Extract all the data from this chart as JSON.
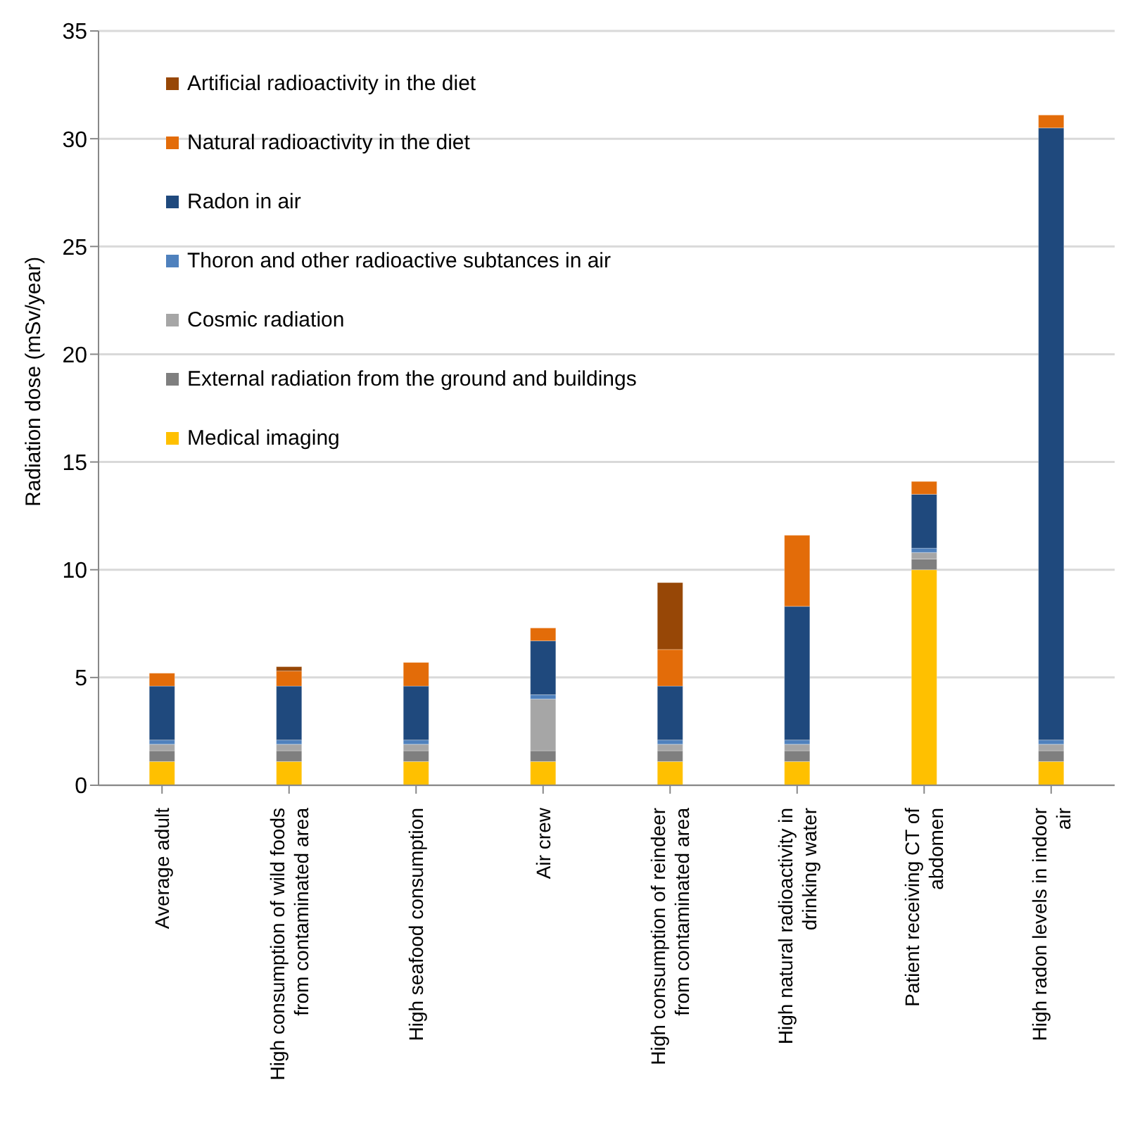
{
  "chart_data": {
    "type": "bar",
    "stacked": true,
    "ylabel": "Radiation dose (mSv/year)",
    "categories": [
      "Average adult",
      "High consumption of wild foods from contaminated area",
      "High seafood consumption",
      "Air crew",
      "High consumption of reindeer from contaminated area",
      "High natural radioactivity in drinking water",
      "Patient receiving CT of abdomen",
      "High radon levels in indoor air"
    ],
    "series": [
      {
        "name": "Medical imaging",
        "color": "#ffc000",
        "values": [
          1.1,
          1.1,
          1.1,
          1.1,
          1.1,
          1.1,
          10,
          1.1
        ]
      },
      {
        "name": "External radiation from the ground and buildings",
        "color": "#7f7f7f",
        "values": [
          0.5,
          0.5,
          0.5,
          0.5,
          0.5,
          0.5,
          0.5,
          0.5
        ]
      },
      {
        "name": "Cosmic radiation",
        "color": "#a6a6a6",
        "values": [
          0.3,
          0.3,
          0.3,
          2.4,
          0.3,
          0.3,
          0.3,
          0.3
        ]
      },
      {
        "name": "Thoron and other radioactive subtances in air",
        "color": "#4f81bd",
        "values": [
          0.2,
          0.2,
          0.2,
          0.2,
          0.2,
          0.2,
          0.2,
          0.2
        ]
      },
      {
        "name": "Radon in air",
        "color": "#1f497d",
        "values": [
          2.5,
          2.5,
          2.5,
          2.5,
          2.5,
          6.2,
          2.5,
          28.4
        ]
      },
      {
        "name": "Natural radioactivity in the diet",
        "color": "#e36c09",
        "values": [
          0.6,
          0.7,
          1.1,
          0.6,
          1.7,
          3.3,
          0.6,
          0.6
        ]
      },
      {
        "name": "Artificial radioactivity in the diet",
        "color": "#974706",
        "values": [
          null,
          0.2,
          null,
          null,
          3.1,
          null,
          null,
          null
        ]
      }
    ],
    "ylim": [
      0,
      35
    ],
    "yticks": [
      0,
      5,
      10,
      15,
      20,
      25,
      30,
      35
    ],
    "grid": "y",
    "legend": "top left"
  }
}
